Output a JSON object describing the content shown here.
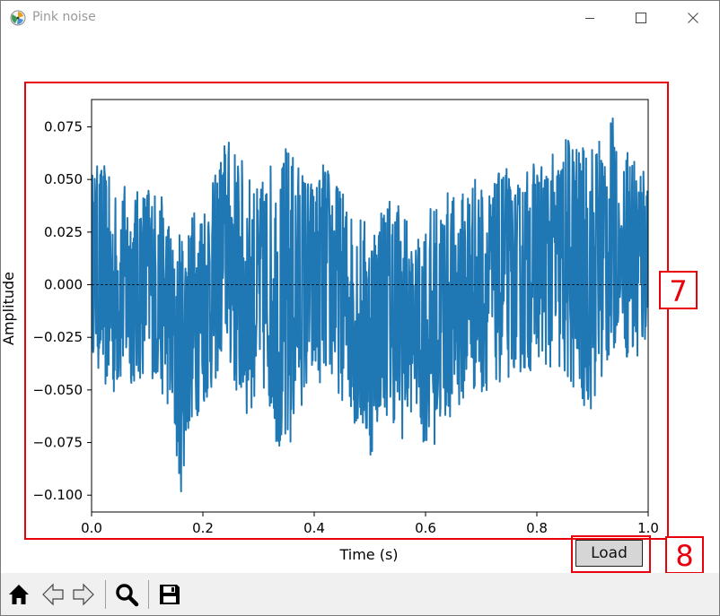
{
  "window": {
    "title": "Pink noise",
    "controls": [
      "minimize-icon",
      "maximize-icon",
      "close-icon"
    ]
  },
  "annotations": {
    "plot_box_label": "7",
    "load_box_label": "8",
    "color": "#e8000b"
  },
  "load_button": {
    "label": "Load"
  },
  "toolbar": {
    "tools": [
      {
        "name": "home-icon"
      },
      {
        "name": "back-arrow-icon"
      },
      {
        "name": "forward-arrow-icon"
      },
      {
        "name": "zoom-icon"
      },
      {
        "name": "save-icon"
      }
    ]
  },
  "chart_data": {
    "type": "line",
    "xlabel": "Time (s)",
    "ylabel": "Amplitude",
    "xlim": [
      0.0,
      1.0
    ],
    "ylim": [
      -0.108,
      0.088
    ],
    "xticks": [
      0.0,
      0.2,
      0.4,
      0.6,
      0.8,
      1.0
    ],
    "xtick_labels": [
      "0.0",
      "0.2",
      "0.4",
      "0.6",
      "0.8",
      "1.0"
    ],
    "yticks": [
      0.075,
      0.05,
      0.025,
      0.0,
      -0.025,
      -0.05,
      -0.075,
      -0.1
    ],
    "ytick_labels": [
      "0.075",
      "0.050",
      "0.025",
      "0.000",
      "−0.025",
      "−0.050",
      "−0.075",
      "−0.100"
    ],
    "series_color": "#1f77b4",
    "zero_line": {
      "y": 0.0,
      "style": "dashed",
      "color": "#000000"
    },
    "envelope": {
      "x": [
        0.0,
        0.02,
        0.04,
        0.06,
        0.08,
        0.1,
        0.12,
        0.14,
        0.15,
        0.16,
        0.18,
        0.2,
        0.22,
        0.24,
        0.26,
        0.28,
        0.3,
        0.32,
        0.34,
        0.35,
        0.37,
        0.4,
        0.42,
        0.44,
        0.46,
        0.48,
        0.5,
        0.52,
        0.54,
        0.56,
        0.58,
        0.6,
        0.62,
        0.64,
        0.66,
        0.68,
        0.7,
        0.72,
        0.74,
        0.76,
        0.78,
        0.8,
        0.82,
        0.84,
        0.86,
        0.88,
        0.9,
        0.92,
        0.94,
        0.95,
        0.96,
        0.98,
        1.0
      ],
      "upper": [
        0.055,
        0.06,
        0.045,
        0.048,
        0.045,
        0.05,
        0.045,
        0.035,
        0.012,
        0.03,
        0.035,
        0.045,
        0.05,
        0.072,
        0.065,
        0.055,
        0.045,
        0.06,
        0.055,
        0.069,
        0.06,
        0.05,
        0.06,
        0.05,
        0.04,
        0.035,
        0.03,
        0.04,
        0.045,
        0.04,
        0.015,
        0.035,
        0.04,
        0.045,
        0.04,
        0.055,
        0.05,
        0.045,
        0.06,
        0.045,
        0.055,
        0.06,
        0.06,
        0.065,
        0.075,
        0.065,
        0.07,
        0.075,
        0.08,
        0.03,
        0.07,
        0.065,
        0.06
      ],
      "lower": [
        -0.03,
        -0.05,
        -0.055,
        -0.045,
        -0.05,
        -0.04,
        -0.05,
        -0.06,
        -0.08,
        -0.1,
        -0.065,
        -0.06,
        -0.05,
        -0.03,
        -0.055,
        -0.065,
        -0.05,
        -0.06,
        -0.085,
        -0.093,
        -0.06,
        -0.05,
        -0.045,
        -0.05,
        -0.06,
        -0.07,
        -0.085,
        -0.06,
        -0.065,
        -0.075,
        -0.055,
        -0.08,
        -0.075,
        -0.065,
        -0.06,
        -0.05,
        -0.055,
        -0.045,
        -0.05,
        -0.04,
        -0.045,
        -0.035,
        -0.04,
        -0.045,
        -0.05,
        -0.06,
        -0.06,
        -0.045,
        -0.035,
        -0.005,
        -0.035,
        -0.045,
        -0.025
      ]
    },
    "samples": 1400
  }
}
